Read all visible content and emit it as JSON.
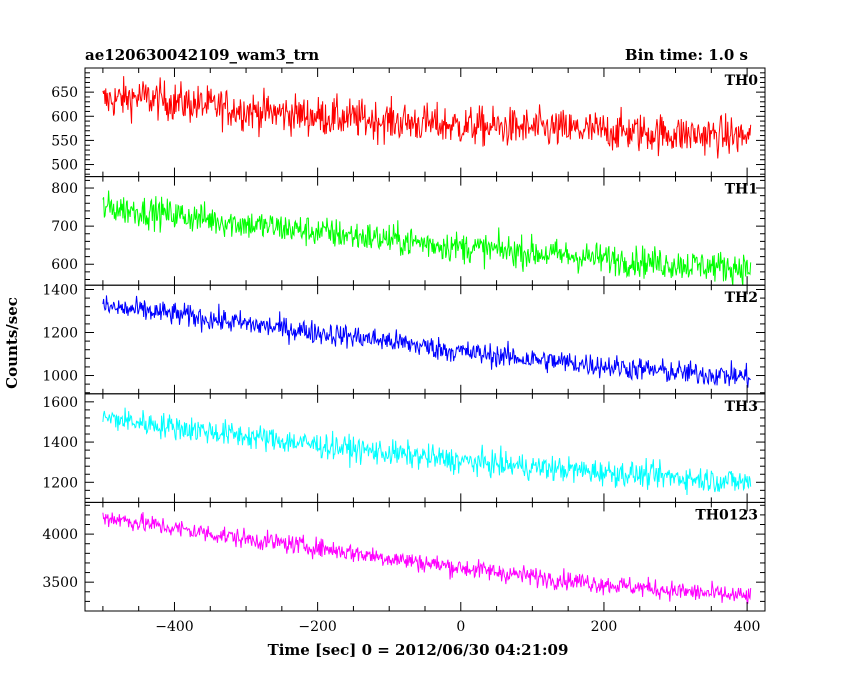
{
  "header": {
    "title": "ae120630042109_wam3_trn",
    "bin_time": "Bin time: 1.0 s"
  },
  "chart_data": {
    "type": "line",
    "title": "ae120630042109_wam3_trn",
    "subtitle": "Bin time: 1.0 s",
    "xlabel": "Time [sec] 0 = 2012/06/30 04:21:09",
    "ylabel": "Counts/sec",
    "xlim": [
      -525,
      425
    ],
    "x_ticks": [
      -400,
      -200,
      0,
      200,
      400
    ],
    "x_tick_labels": [
      "−400",
      "−200",
      "0",
      "200",
      "400"
    ],
    "x_data_range": [
      -500,
      405
    ],
    "bin_time_s": 1.0,
    "grid": false,
    "legend": "none",
    "panels": [
      {
        "name": "TH0",
        "color": "#ff0000",
        "ylim": [
          475,
          700
        ],
        "yticks": [
          500,
          550,
          600,
          650
        ],
        "trend": {
          "x": [
            -500,
            -450,
            -400,
            -300,
            -200,
            -100,
            0,
            100,
            200,
            300,
            400
          ],
          "y": [
            632,
            640,
            630,
            612,
            600,
            590,
            580,
            575,
            570,
            563,
            558
          ]
        },
        "noise_amplitude": 45
      },
      {
        "name": "TH1",
        "color": "#00ff00",
        "ylim": [
          545,
          830
        ],
        "yticks": [
          600,
          700,
          800
        ],
        "trend": {
          "x": [
            -500,
            -400,
            -300,
            -200,
            -100,
            0,
            100,
            200,
            300,
            400
          ],
          "y": [
            750,
            730,
            705,
            685,
            665,
            645,
            630,
            615,
            600,
            590
          ]
        },
        "noise_amplitude": 45
      },
      {
        "name": "TH2",
        "color": "#0000ff",
        "ylim": [
          915,
          1420
        ],
        "yticks": [
          1000,
          1200,
          1400
        ],
        "trend": {
          "x": [
            -500,
            -400,
            -300,
            -200,
            -100,
            0,
            100,
            200,
            300,
            400
          ],
          "y": [
            1320,
            1285,
            1240,
            1200,
            1160,
            1110,
            1075,
            1045,
            1015,
            995
          ]
        },
        "noise_amplitude": 60
      },
      {
        "name": "TH3",
        "color": "#00ffff",
        "ylim": [
          1100,
          1640
        ],
        "yticks": [
          1200,
          1400,
          1600
        ],
        "trend": {
          "x": [
            -500,
            -400,
            -300,
            -200,
            -100,
            0,
            100,
            200,
            300,
            400
          ],
          "y": [
            1520,
            1475,
            1430,
            1385,
            1345,
            1305,
            1275,
            1250,
            1225,
            1200
          ]
        },
        "noise_amplitude": 70
      },
      {
        "name": "TH0123",
        "color": "#ff00ff",
        "ylim": [
          3200,
          4330
        ],
        "yticks": [
          3500,
          4000
        ],
        "trend": {
          "x": [
            -500,
            -400,
            -300,
            -200,
            -100,
            0,
            100,
            200,
            300,
            400
          ],
          "y": [
            4180,
            4060,
            3950,
            3860,
            3750,
            3650,
            3560,
            3480,
            3410,
            3350
          ]
        },
        "noise_amplitude": 110
      }
    ]
  }
}
